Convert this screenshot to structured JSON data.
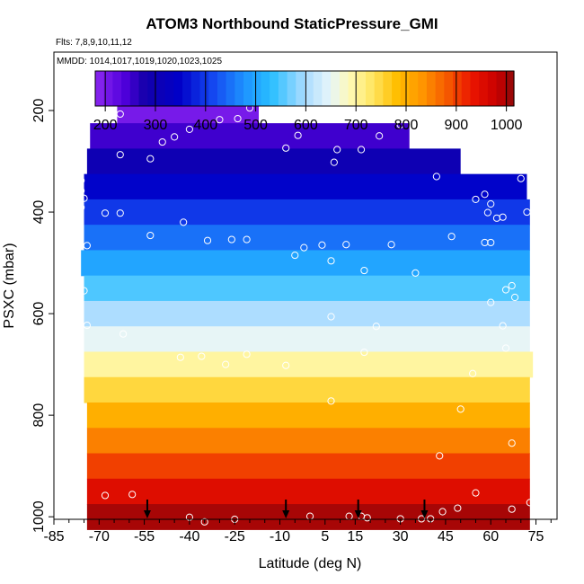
{
  "header": {
    "title": "ATOM3 Northbound StaticPressure_GMI",
    "flights_line": "Flts: 7,8,9,10,11,12",
    "dates_line": "MMDD: 1014,1017,1019,1020,1023,1025"
  },
  "chart_data": {
    "type": "heatmap",
    "title": "ATOM3 Northbound StaticPressure_GMI",
    "xlabel": "Latitude (deg N)",
    "ylabel": "PSXC (mbar)",
    "xlim": [
      -85,
      82
    ],
    "ylim": [
      1005,
      85
    ],
    "y_inverted": true,
    "x_ticks": [
      -85,
      -70,
      -55,
      -40,
      -25,
      -10,
      5,
      15,
      30,
      45,
      60,
      75
    ],
    "y_ticks": [
      200,
      400,
      600,
      800,
      1000
    ],
    "colorbar": {
      "ticks": [
        200,
        300,
        400,
        500,
        600,
        700,
        800,
        900,
        1000
      ],
      "range": [
        180,
        1015
      ]
    },
    "bands": [
      {
        "p": 200,
        "lat_min": -64,
        "lat_max": -17
      },
      {
        "p": 250,
        "lat_min": -73,
        "lat_max": 33
      },
      {
        "p": 300,
        "lat_min": -74,
        "lat_max": 50
      },
      {
        "p": 350,
        "lat_min": -75,
        "lat_max": 72
      },
      {
        "p": 400,
        "lat_min": -75,
        "lat_max": 73
      },
      {
        "p": 450,
        "lat_min": -75,
        "lat_max": 73
      },
      {
        "p": 500,
        "lat_min": -76,
        "lat_max": 73
      },
      {
        "p": 550,
        "lat_min": -75,
        "lat_max": 73
      },
      {
        "p": 600,
        "lat_min": -75,
        "lat_max": 73
      },
      {
        "p": 650,
        "lat_min": -75,
        "lat_max": 73
      },
      {
        "p": 700,
        "lat_min": -75,
        "lat_max": 74
      },
      {
        "p": 750,
        "lat_min": -75,
        "lat_max": 73
      },
      {
        "p": 800,
        "lat_min": -74,
        "lat_max": 73
      },
      {
        "p": 850,
        "lat_min": -74,
        "lat_max": 73
      },
      {
        "p": 900,
        "lat_min": -74,
        "lat_max": 73
      },
      {
        "p": 950,
        "lat_min": -74,
        "lat_max": 73
      },
      {
        "p": 1000,
        "lat_min": -74,
        "lat_max": 73
      }
    ],
    "observations": [
      [
        -63,
        207
      ],
      [
        -20,
        195
      ],
      [
        -40,
        237
      ],
      [
        -45,
        252
      ],
      [
        -49,
        262
      ],
      [
        -30,
        218
      ],
      [
        -24,
        216
      ],
      [
        -4,
        249
      ],
      [
        30,
        228
      ],
      [
        23,
        250
      ],
      [
        -8,
        274
      ],
      [
        9,
        277
      ],
      [
        17,
        277
      ],
      [
        8,
        302
      ],
      [
        -53,
        295
      ],
      [
        -63,
        287
      ],
      [
        -76,
        338
      ],
      [
        -76,
        358
      ],
      [
        -75,
        373
      ],
      [
        -76,
        391
      ],
      [
        -68,
        402
      ],
      [
        -63,
        402
      ],
      [
        -42,
        420
      ],
      [
        -53,
        446
      ],
      [
        -34,
        456
      ],
      [
        -21,
        454
      ],
      [
        -26,
        454
      ],
      [
        4,
        465
      ],
      [
        -2,
        470
      ],
      [
        12,
        464
      ],
      [
        27,
        464
      ],
      [
        47,
        448
      ],
      [
        -5,
        485
      ],
      [
        7,
        496
      ],
      [
        18,
        515
      ],
      [
        35,
        520
      ],
      [
        42,
        330
      ],
      [
        55,
        375
      ],
      [
        58,
        365
      ],
      [
        60,
        384
      ],
      [
        59,
        401
      ],
      [
        64,
        410
      ],
      [
        62,
        412
      ],
      [
        70,
        334
      ],
      [
        72,
        400
      ],
      [
        58,
        460
      ],
      [
        60,
        460
      ],
      [
        65,
        553
      ],
      [
        67,
        545
      ],
      [
        68,
        568
      ],
      [
        60,
        578
      ],
      [
        -74,
        466
      ],
      [
        -75,
        555
      ],
      [
        -74,
        623
      ],
      [
        -62,
        640
      ],
      [
        -43,
        686
      ],
      [
        -36,
        684
      ],
      [
        -28,
        700
      ],
      [
        -21,
        680
      ],
      [
        -8,
        702
      ],
      [
        7,
        606
      ],
      [
        18,
        676
      ],
      [
        22,
        625
      ],
      [
        54,
        718
      ],
      [
        64,
        624
      ],
      [
        65,
        668
      ],
      [
        7,
        772
      ],
      [
        50,
        788
      ],
      [
        43,
        880
      ],
      [
        67,
        855
      ],
      [
        -77,
        962
      ],
      [
        -68,
        958
      ],
      [
        -59,
        956
      ],
      [
        55,
        953
      ],
      [
        67,
        985
      ],
      [
        73,
        972
      ],
      [
        -40,
        1001
      ],
      [
        -35,
        1010
      ],
      [
        -25,
        1005
      ],
      [
        0,
        999
      ],
      [
        13,
        999
      ],
      [
        17,
        999
      ],
      [
        19,
        1002
      ],
      [
        30,
        1004
      ],
      [
        37,
        1004
      ],
      [
        40,
        1004
      ],
      [
        44,
        990
      ],
      [
        49,
        983
      ]
    ],
    "flight_markers_lat": [
      -54,
      -8,
      16,
      38
    ],
    "grid": false,
    "colorbar_position": "top, inside plot"
  }
}
